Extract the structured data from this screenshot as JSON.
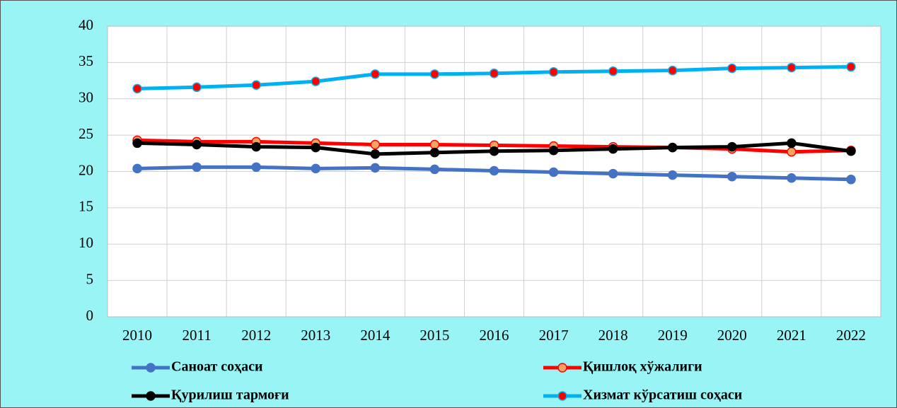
{
  "chart_data": {
    "type": "line",
    "categories": [
      "2010",
      "2011",
      "2012",
      "2013",
      "2014",
      "2015",
      "2016",
      "2017",
      "2018",
      "2019",
      "2020",
      "2021",
      "2022"
    ],
    "series": [
      {
        "name": "Саноат соҳаси",
        "color": "#4472c4",
        "marker_color": "#4472c4",
        "values": [
          20.4,
          20.6,
          20.6,
          20.4,
          20.5,
          20.3,
          20.1,
          19.9,
          19.7,
          19.5,
          19.3,
          19.1,
          18.9
        ]
      },
      {
        "name": "Қишлоқ хўжалиги",
        "color": "#ff0000",
        "marker_color": "#f4a460",
        "values": [
          24.3,
          24.1,
          24.1,
          23.9,
          23.7,
          23.7,
          23.6,
          23.5,
          23.4,
          23.3,
          23.1,
          22.7,
          22.9
        ]
      },
      {
        "name": "Қурилиш тармоғи",
        "color": "#000000",
        "marker_color": "#000000",
        "values": [
          23.9,
          23.7,
          23.4,
          23.3,
          22.4,
          22.6,
          22.8,
          22.9,
          23.1,
          23.3,
          23.4,
          23.9,
          22.8
        ]
      },
      {
        "name": "Хизмат кўрсатиш соҳаси",
        "color": "#00b0f0",
        "marker_color": "#ff0000",
        "values": [
          31.4,
          31.6,
          31.9,
          32.4,
          33.4,
          33.4,
          33.5,
          33.7,
          33.8,
          33.9,
          34.2,
          34.3,
          34.4
        ]
      }
    ],
    "ylim": [
      0,
      40
    ],
    "yticks": [
      0,
      5,
      10,
      15,
      20,
      25,
      30,
      35,
      40
    ],
    "grid": true,
    "legend": "bottom"
  }
}
